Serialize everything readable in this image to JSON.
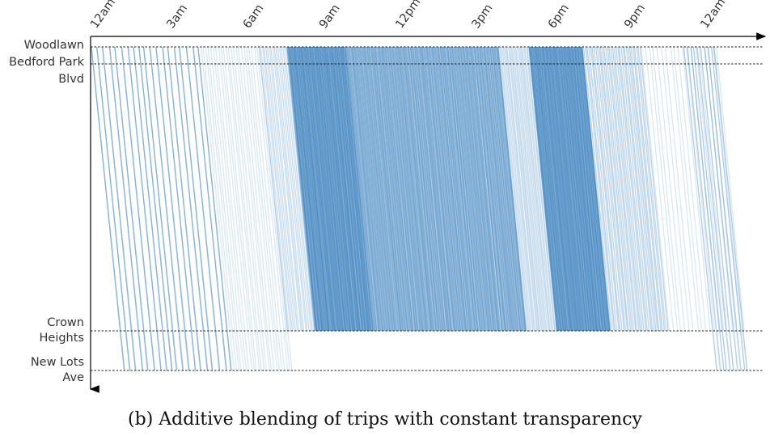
{
  "caption": "(b) Additive blending of trips with constant transparency",
  "chart_data": {
    "type": "line",
    "title": "",
    "xlabel": "",
    "ylabel": "",
    "x_ticks": [
      "12am",
      "3am",
      "6am",
      "9am",
      "12pm",
      "3pm",
      "6pm",
      "9pm",
      "12am"
    ],
    "x_tick_hours": [
      0,
      3,
      6,
      9,
      12,
      15,
      18,
      21,
      24
    ],
    "xlim_hours": [
      0,
      26.5
    ],
    "stations": [
      {
        "name": "Woodlawn",
        "lines": [
          "Woodlawn"
        ]
      },
      {
        "name": "Bedford Park Blvd",
        "lines": [
          "Bedford Park",
          "Blvd"
        ]
      },
      {
        "name": "Crown Heights",
        "lines": [
          "Crown",
          "Heights"
        ]
      },
      {
        "name": "New Lots Ave",
        "lines": [
          "New Lots",
          "Ave"
        ]
      }
    ],
    "line_color": "#2878b8",
    "opacity_per_trip": 0.09,
    "blending": "additive",
    "trip_travel_hours_full": 1.3,
    "trip_travel_hours_crown_heights": 1.1,
    "service_bands": [
      {
        "start": 0.0,
        "end": 4.3,
        "headway_min": 14,
        "to": "New Lots Ave",
        "reps": 9
      },
      {
        "start": 4.3,
        "end": 6.6,
        "headway_min": 6,
        "to": "New Lots Ave",
        "reps": 2
      },
      {
        "start": 6.6,
        "end": 7.7,
        "headway_min": 4,
        "to": "Crown Heights",
        "reps": 3
      },
      {
        "start": 7.7,
        "end": 10.0,
        "headway_min": 1.5,
        "to": "Crown Heights",
        "reps": 8
      },
      {
        "start": 10.0,
        "end": 16.0,
        "headway_min": 2,
        "to": "Crown Heights",
        "reps": 7
      },
      {
        "start": 16.0,
        "end": 17.2,
        "headway_min": 3,
        "to": "Crown Heights",
        "reps": 3
      },
      {
        "start": 17.2,
        "end": 19.3,
        "headway_min": 1.5,
        "to": "Crown Heights",
        "reps": 8
      },
      {
        "start": 19.3,
        "end": 21.6,
        "headway_min": 4,
        "to": "Crown Heights",
        "reps": 4
      },
      {
        "start": 21.6,
        "end": 24.7,
        "headway_min": 10,
        "to": "Crown Heights",
        "reps": 2
      },
      {
        "start": 23.3,
        "end": 24.5,
        "headway_min": 8,
        "to": "New Lots Ave",
        "reps": 5
      }
    ],
    "grid": false,
    "legend": "none"
  }
}
